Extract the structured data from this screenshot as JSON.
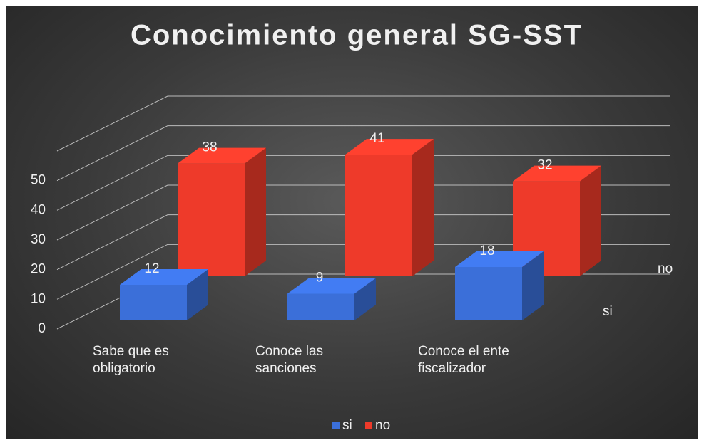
{
  "chart_data": {
    "type": "bar3d",
    "title": "Conocimiento general SG-SST",
    "categories": [
      "Sabe que es obligatorio",
      "Conoce las sanciones",
      "Conoce el ente fiscalizador"
    ],
    "series": [
      {
        "name": "si",
        "color": "#3b6fd9",
        "values": [
          12,
          9,
          18
        ]
      },
      {
        "name": "no",
        "color": "#ee3a2a",
        "values": [
          38,
          41,
          32
        ]
      }
    ],
    "ylim": [
      0,
      60
    ],
    "yticks": [
      0,
      10,
      20,
      30,
      40,
      50
    ],
    "grid": true,
    "legend": "bottom"
  }
}
